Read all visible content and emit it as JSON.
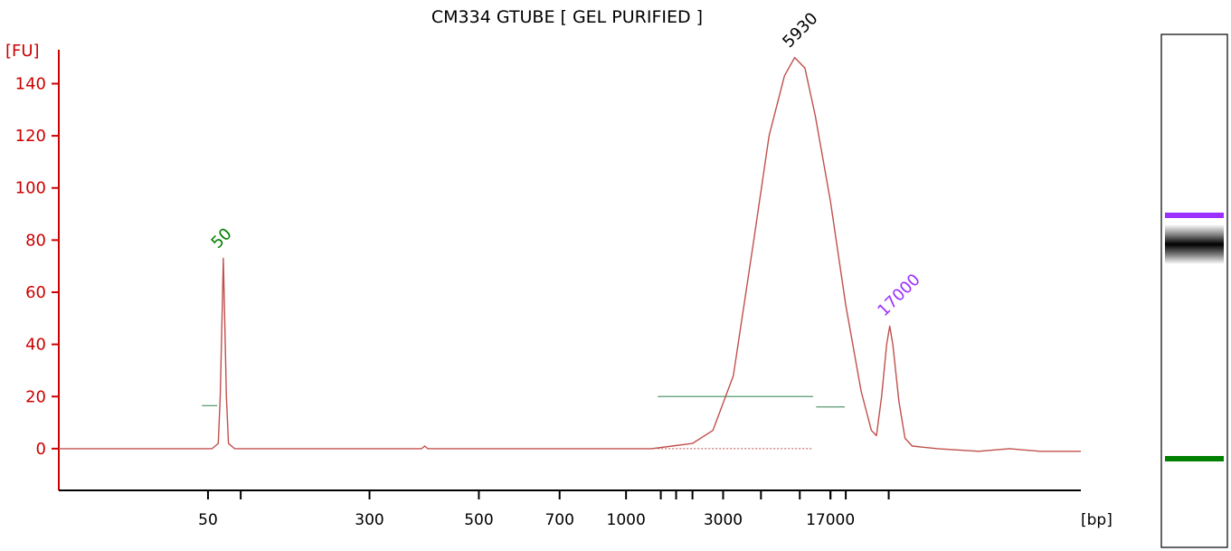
{
  "chart_data": {
    "type": "line",
    "title": "CM334 GTUBE  [ GEL PURIFIED ]",
    "ylabel": "[FU]",
    "xlabel": "[bp]",
    "ylim": [
      -16,
      153
    ],
    "y_ticks": [
      0,
      20,
      40,
      60,
      80,
      100,
      120,
      140
    ],
    "x_tick_labels": [
      "50",
      "300",
      "500",
      "700",
      "1000",
      "3000",
      "17000"
    ],
    "x_minor_tick_count": 13,
    "series": [
      {
        "color": "#c0504d",
        "points": [
          [
            0.0,
            0
          ],
          [
            0.15,
            0
          ],
          [
            0.156,
            2
          ],
          [
            0.158,
            20
          ],
          [
            0.16,
            55
          ],
          [
            0.161,
            73
          ],
          [
            0.162,
            55
          ],
          [
            0.164,
            20
          ],
          [
            0.166,
            2
          ],
          [
            0.172,
            0
          ],
          [
            0.355,
            0
          ],
          [
            0.358,
            1
          ],
          [
            0.361,
            0
          ],
          [
            0.58,
            0
          ],
          [
            0.6,
            1
          ],
          [
            0.62,
            2
          ],
          [
            0.64,
            7
          ],
          [
            0.66,
            28
          ],
          [
            0.68,
            80
          ],
          [
            0.695,
            120
          ],
          [
            0.71,
            143
          ],
          [
            0.72,
            150
          ],
          [
            0.73,
            146
          ],
          [
            0.74,
            128
          ],
          [
            0.755,
            95
          ],
          [
            0.77,
            55
          ],
          [
            0.785,
            22
          ],
          [
            0.795,
            7
          ],
          [
            0.8,
            5
          ],
          [
            0.805,
            20
          ],
          [
            0.81,
            40
          ],
          [
            0.813,
            47
          ],
          [
            0.816,
            40
          ],
          [
            0.822,
            18
          ],
          [
            0.828,
            4
          ],
          [
            0.835,
            1
          ],
          [
            0.86,
            0
          ],
          [
            0.9,
            -1
          ],
          [
            0.93,
            0
          ],
          [
            0.96,
            -1
          ],
          [
            1.0,
            -1
          ]
        ]
      }
    ],
    "peaks": [
      {
        "label": "50",
        "color": "#008000",
        "value": 73
      },
      {
        "label": "5930",
        "color": "#000000",
        "value": 150
      },
      {
        "label": "17000",
        "color": "#9b30ff",
        "value": 47
      }
    ],
    "gel": {
      "bands": [
        {
          "label": "17000",
          "color": "#9b30ff"
        },
        {
          "label": "5930",
          "color": "#000000"
        },
        {
          "label": "50",
          "color": "#008000"
        }
      ]
    },
    "colors": {
      "axis": "#cc0000",
      "trace": "#c0504d",
      "baseline_marker": "#5a9a72",
      "text": "#000000"
    }
  }
}
